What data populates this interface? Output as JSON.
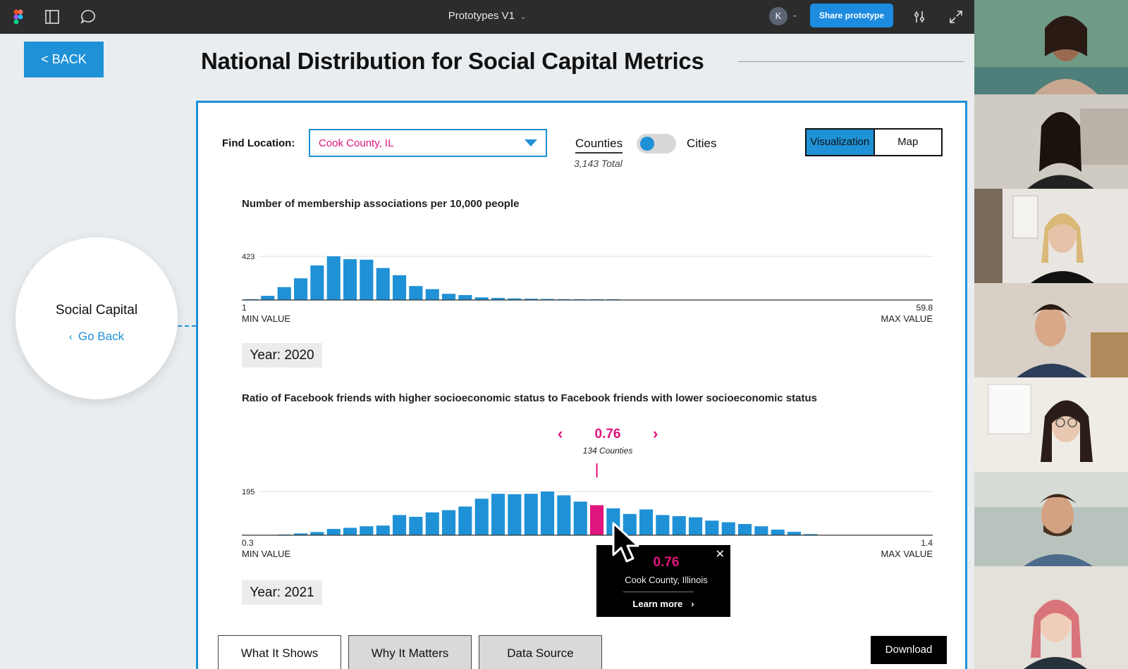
{
  "topbar": {
    "title": "Prototypes V1",
    "user_initial": "K",
    "share_label": "Share prototype"
  },
  "page": {
    "back_label": "< BACK",
    "title": "National Distribution for Social Capital Metrics"
  },
  "nav_circle": {
    "title": "Social Capital",
    "go_back_label": "Go Back"
  },
  "controls": {
    "find_label": "Find Location:",
    "location_value": "Cook County, IL",
    "counties_label": "Counties",
    "counties_total": "3,143 Total",
    "cities_label": "Cities",
    "view_visualization": "Visualization",
    "view_map": "Map"
  },
  "chart_data": [
    {
      "type": "bar",
      "title": "Number of membership associations per 10,000 people",
      "x_min": 1,
      "x_max": 59.8,
      "x_min_value": "1",
      "x_max_value": "59.8",
      "x_min_label": "MIN VALUE",
      "x_max_label": "MAX VALUE",
      "ymax_label": "423",
      "ylim": [
        0,
        423
      ],
      "values": [
        8,
        40,
        125,
        210,
        335,
        423,
        395,
        390,
        310,
        240,
        135,
        105,
        60,
        48,
        25,
        20,
        15,
        12,
        10,
        8,
        5,
        3,
        2,
        0,
        0,
        0,
        0,
        0,
        0,
        0,
        0,
        0,
        0,
        0,
        0,
        0,
        0,
        0,
        0,
        0,
        0,
        0
      ],
      "year_label": "Year: 2020"
    },
    {
      "type": "bar",
      "title": "Ratio of Facebook friends with higher socioeconomic status to Facebook friends with lower socioeconomic status",
      "x_min": 0.3,
      "x_max": 1.4,
      "x_min_value": "0.3",
      "x_max_value": "1.4",
      "x_min_label": "MIN VALUE",
      "x_max_label": "MAX VALUE",
      "ymax_label": "195",
      "ylim": [
        0,
        195
      ],
      "values": [
        0,
        0,
        2,
        8,
        14,
        28,
        33,
        40,
        43,
        90,
        82,
        102,
        112,
        128,
        163,
        185,
        183,
        185,
        195,
        178,
        150,
        134,
        120,
        95,
        115,
        90,
        85,
        80,
        65,
        58,
        50,
        40,
        25,
        15,
        5,
        0,
        0,
        0,
        0,
        0,
        0,
        0
      ],
      "highlight_index": 21,
      "highlight_value": "0.76",
      "highlight_count": "134 Counties",
      "year_label": "Year: 2021"
    }
  ],
  "tooltip": {
    "value": "0.76",
    "location": "Cook County, Illinois",
    "learn_more": "Learn more",
    "close": "✕"
  },
  "tabs": {
    "what_it_shows": "What It Shows",
    "why_it_matters": "Why It Matters",
    "data_source": "Data Source"
  },
  "download_label": "Download",
  "colors": {
    "accent": "#1f91d6",
    "highlight": "#e0147e",
    "bar": "#1f91d6"
  }
}
